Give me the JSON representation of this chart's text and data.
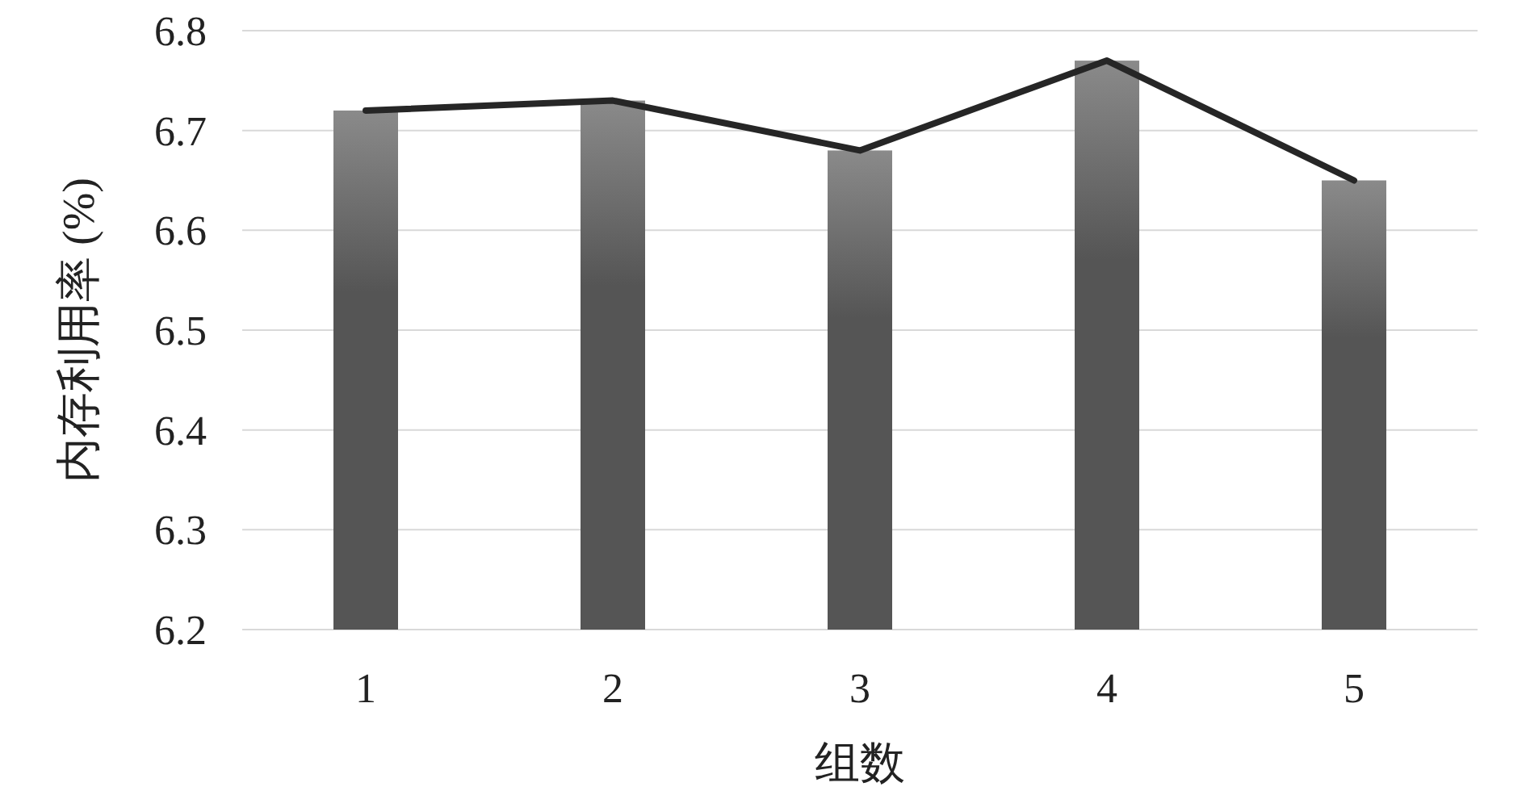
{
  "chart_data": {
    "type": "bar",
    "xlabel": "组数",
    "ylabel": "内存利用率 (%)",
    "categories": [
      "1",
      "2",
      "3",
      "4",
      "5"
    ],
    "series": [
      {
        "color": "#555555",
        "values": [
          6.72,
          6.73,
          6.68,
          6.77,
          6.65
        ]
      },
      {
        "type": "line",
        "color": "#262626",
        "values": [
          6.72,
          6.73,
          6.68,
          6.77,
          6.65
        ]
      }
    ],
    "ylim": [
      6.2,
      6.8
    ],
    "yticks": [
      6.2,
      6.3,
      6.4,
      6.5,
      6.6,
      6.7,
      6.8
    ],
    "grid": "y"
  }
}
